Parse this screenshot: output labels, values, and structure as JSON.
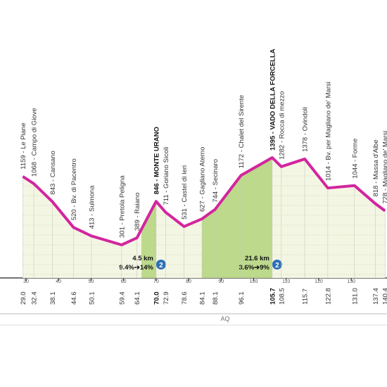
{
  "chart_data": {
    "type": "profile",
    "color": "#d3259e",
    "fill": "#f4f6e4",
    "climb_color": "#bcd98c",
    "xlim": [
      22,
      141
    ],
    "xticks": [
      30,
      40,
      50,
      60,
      70,
      80,
      90,
      100,
      110,
      120,
      130
    ],
    "waypoints": [
      {
        "label": "1159 - Le Piane",
        "elevation": 1159,
        "km": {
          "value": 29.0,
          "label": "29.0"
        },
        "kom": false
      },
      {
        "label": "1068 - Campo di Giove",
        "elevation": 1068,
        "km": {
          "value": 32.4,
          "label": "32.4"
        },
        "kom": false
      },
      {
        "label": "843 - Cansano",
        "elevation": 843,
        "km": {
          "value": 38.1,
          "label": "38.1"
        },
        "kom": false
      },
      {
        "label": "520 - Bv. di Pacentro",
        "elevation": 520,
        "km": {
          "value": 44.6,
          "label": "44.6"
        },
        "kom": false
      },
      {
        "label": "413 - Sulmona",
        "elevation": 413,
        "km": {
          "value": 50.1,
          "label": "50.1"
        },
        "kom": false
      },
      {
        "label": "301 - Pretola Peligna",
        "elevation": 301,
        "km": {
          "value": 59.4,
          "label": "59.4"
        },
        "kom": false
      },
      {
        "label": "389 - Raiano",
        "elevation": 389,
        "km": {
          "value": 64.1,
          "label": "64.1"
        },
        "kom": false
      },
      {
        "label": "846 - MONTE URANO",
        "elevation": 846,
        "km": {
          "value": 70.0,
          "label": "70.0"
        },
        "kom": true
      },
      {
        "label": "711 - Goriano Sicoli",
        "elevation": 711,
        "km": {
          "value": 72.9,
          "label": "72.9"
        },
        "kom": false
      },
      {
        "label": "531 - Castel di Ieri",
        "elevation": 531,
        "km": {
          "value": 78.6,
          "label": "78.6"
        },
        "kom": false
      },
      {
        "label": "627 - Gagliano Aterno",
        "elevation": 627,
        "km": {
          "value": 84.1,
          "label": "84.1"
        },
        "kom": false
      },
      {
        "label": "744 - Secinaro",
        "elevation": 744,
        "km": {
          "value": 88.1,
          "label": "88.1"
        },
        "kom": false
      },
      {
        "label": "1172 - Chalet del Sirente",
        "elevation": 1172,
        "km": {
          "value": 96.1,
          "label": "96.1"
        },
        "kom": false
      },
      {
        "label": "1395 - VADO DELLA FORCELLA",
        "elevation": 1395,
        "km": {
          "value": 105.7,
          "label": "105.7"
        },
        "kom": true
      },
      {
        "label": "1282 - Rocca di mezzo",
        "elevation": 1282,
        "km": {
          "value": 108.5,
          "label": "108.5"
        },
        "kom": false
      },
      {
        "label": "1378 - Ovindoli",
        "elevation": 1378,
        "km": {
          "value": 115.7,
          "label": "115.7"
        },
        "kom": false
      },
      {
        "label": "1014 - Bv. per Magliano de' Marsi",
        "elevation": 1014,
        "km": {
          "value": 122.8,
          "label": "122.8"
        },
        "kom": false
      },
      {
        "label": "1044 - Forme",
        "elevation": 1044,
        "km": {
          "value": 131.0,
          "label": "131.0"
        },
        "kom": false
      },
      {
        "label": "818 - Massa d'Albe",
        "elevation": 818,
        "km": {
          "value": 137.4,
          "label": "137.4"
        },
        "kom": false
      },
      {
        "label": "728 - Magliano de' Marsi",
        "elevation": 728,
        "km": {
          "value": 140.4,
          "label": "140.4"
        },
        "kom": false
      }
    ],
    "climbs": [
      {
        "distance": "4.5 km",
        "gradient": "9.4%➔14%",
        "start": 65.5,
        "end": 70.0
      },
      {
        "distance": "21.6 km",
        "gradient": "3.6%➔9%",
        "start": 84.1,
        "end": 105.7
      }
    ],
    "region": "AQ"
  }
}
